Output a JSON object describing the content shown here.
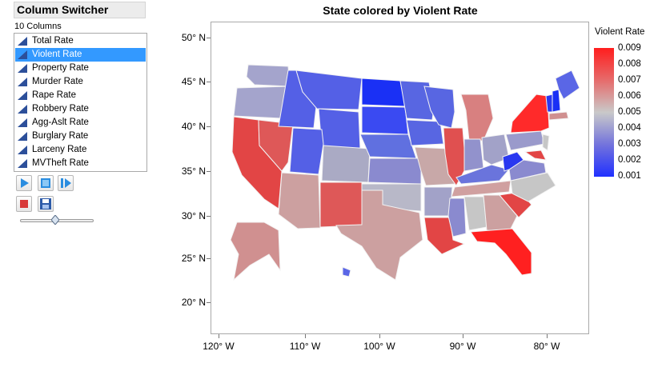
{
  "column_switcher": {
    "title": "Column Switcher",
    "count_label": "10 Columns",
    "columns": [
      "Total Rate",
      "Violent Rate",
      "Property Rate",
      "Murder Rate",
      "Rape Rate",
      "Robbery Rate",
      "Agg-Aslt Rate",
      "Burglary Rate",
      "Larceny Rate",
      "MVTheft Rate"
    ],
    "selected": "Violent Rate",
    "buttons": [
      "play-icon",
      "stop-frame-icon",
      "step-forward-icon",
      "stop-icon",
      "save-icon"
    ]
  },
  "chart": {
    "title": "State colored by Violent Rate",
    "y_ticks": [
      "50° N",
      "45° N",
      "40° N",
      "35° N",
      "30° N",
      "25° N",
      "20° N"
    ],
    "x_ticks": [
      "120° W",
      "110° W",
      "100° W",
      "90° W",
      "80° W"
    ],
    "legend_title": "Violent Rate",
    "legend_labels": [
      "0.009",
      "0.008",
      "0.007",
      "0.006",
      "0.005",
      "0.004",
      "0.003",
      "0.002",
      "0.001"
    ],
    "colors": {
      "high": "#ff1e1e",
      "mid": "#c9c9c9",
      "low": "#2030ff"
    }
  }
}
